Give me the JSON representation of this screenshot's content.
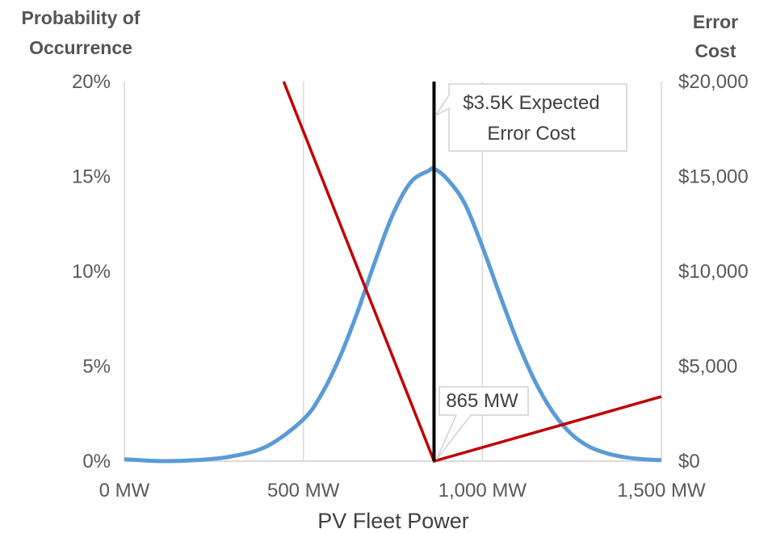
{
  "chart_data": {
    "type": "line",
    "ylabel_left": [
      "Probability of",
      "Occurrence"
    ],
    "ylabel_right": [
      "Error",
      "Cost"
    ],
    "xlabel": "PV Fleet Power",
    "x_ticks": [
      "0 MW",
      "500 MW",
      "1,000 MW",
      "1,500 MW"
    ],
    "x_tick_values": [
      0,
      500,
      1000,
      1500
    ],
    "xlim": [
      0,
      1500
    ],
    "y_left_ticks": [
      "0%",
      "5%",
      "10%",
      "15%",
      "20%"
    ],
    "y_left_tick_values": [
      0,
      5,
      10,
      15,
      20
    ],
    "ylim_left": [
      0,
      20
    ],
    "y_right_ticks": [
      "$0",
      "$5,000",
      "$10,000",
      "$15,000",
      "$20,000"
    ],
    "y_right_tick_values": [
      0,
      5000,
      10000,
      15000,
      20000
    ],
    "ylim_right": [
      0,
      20000
    ],
    "grid": "vertical",
    "colors": {
      "probability": "#5b9bd5",
      "cost": "#c00000",
      "marker": "#000000"
    },
    "series": [
      {
        "axis": "left",
        "x": [
          0,
          100,
          200,
          300,
          400,
          500,
          550,
          600,
          650,
          700,
          750,
          800,
          850,
          865,
          900,
          950,
          1000,
          1050,
          1100,
          1150,
          1200,
          1250,
          1300,
          1350,
          1400,
          1450,
          1500
        ],
        "values": [
          0.1,
          0.0,
          0.05,
          0.25,
          0.8,
          2.2,
          3.5,
          5.4,
          7.8,
          10.5,
          13.0,
          14.7,
          15.3,
          15.4,
          14.9,
          13.6,
          11.3,
          8.7,
          6.2,
          4.1,
          2.5,
          1.4,
          0.75,
          0.4,
          0.2,
          0.1,
          0.05
        ]
      },
      {
        "axis": "right",
        "x": [
          445,
          865,
          1500
        ],
        "values": [
          20000,
          0,
          3400
        ]
      }
    ],
    "marker": {
      "x": 865,
      "label": "865 MW"
    },
    "annotation": [
      "$3.5K  Expected",
      "Error Cost"
    ]
  }
}
